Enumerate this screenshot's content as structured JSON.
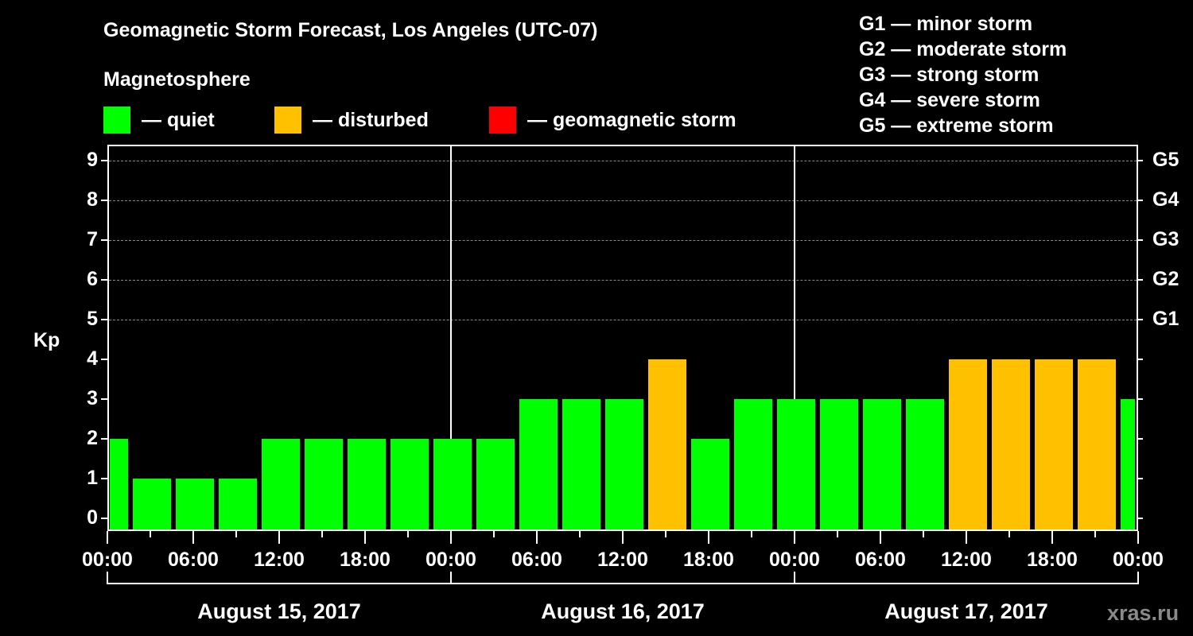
{
  "header": {
    "title": "Geomagnetic Storm Forecast, Los Angeles (UTC-07)",
    "subtitle": "Magnetosphere"
  },
  "legend": {
    "items": [
      {
        "label": "— quiet",
        "color": "#00ff00"
      },
      {
        "label": "— disturbed",
        "color": "#ffc000"
      },
      {
        "label": "— geomagnetic storm",
        "color": "#ff0000"
      }
    ]
  },
  "g_legend": [
    "G1 — minor storm",
    "G2 — moderate storm",
    "G3 — strong storm",
    "G4 — severe storm",
    "G5 — extreme storm"
  ],
  "axis": {
    "ylabel": "Kp",
    "yticks": [
      "0",
      "1",
      "2",
      "3",
      "4",
      "5",
      "6",
      "7",
      "8",
      "9"
    ],
    "gticks": [
      {
        "kp": 5,
        "label": "G1"
      },
      {
        "kp": 6,
        "label": "G2"
      },
      {
        "kp": 7,
        "label": "G3"
      },
      {
        "kp": 8,
        "label": "G4"
      },
      {
        "kp": 9,
        "label": "G5"
      }
    ],
    "xticks": [
      "00:00",
      "06:00",
      "12:00",
      "18:00",
      "00:00",
      "06:00",
      "12:00",
      "18:00",
      "00:00",
      "06:00",
      "12:00",
      "18:00",
      "00:00"
    ],
    "days": [
      "August 15, 2017",
      "August 16, 2017",
      "August 17, 2017"
    ]
  },
  "watermark": "xras.ru",
  "chart_data": {
    "type": "bar",
    "title": "Geomagnetic Storm Forecast, Los Angeles (UTC-07)",
    "subtitle": "Magnetosphere",
    "xlabel": "",
    "ylabel": "Kp",
    "ylim": [
      0,
      9
    ],
    "grid": "horizontal dashed at Kp 5-9",
    "categories": [
      "Aug 15 00:00",
      "Aug 15 03:00",
      "Aug 15 06:00",
      "Aug 15 09:00",
      "Aug 15 12:00",
      "Aug 15 15:00",
      "Aug 15 18:00",
      "Aug 15 21:00",
      "Aug 16 00:00",
      "Aug 16 03:00",
      "Aug 16 06:00",
      "Aug 16 09:00",
      "Aug 16 12:00",
      "Aug 16 15:00",
      "Aug 16 18:00",
      "Aug 16 21:00",
      "Aug 17 00:00",
      "Aug 17 03:00",
      "Aug 17 06:00",
      "Aug 17 09:00",
      "Aug 17 12:00",
      "Aug 17 15:00",
      "Aug 17 18:00",
      "Aug 17 21:00",
      "Aug 18 00:00"
    ],
    "values": [
      2,
      1,
      1,
      1,
      2,
      2,
      2,
      2,
      2,
      2,
      3,
      3,
      3,
      4,
      2,
      3,
      3,
      3,
      3,
      3,
      4,
      4,
      4,
      4,
      3
    ],
    "status": [
      "quiet",
      "quiet",
      "quiet",
      "quiet",
      "quiet",
      "quiet",
      "quiet",
      "quiet",
      "quiet",
      "quiet",
      "quiet",
      "quiet",
      "quiet",
      "disturbed",
      "quiet",
      "quiet",
      "quiet",
      "quiet",
      "quiet",
      "quiet",
      "disturbed",
      "disturbed",
      "disturbed",
      "disturbed",
      "quiet"
    ],
    "legend": [
      "quiet",
      "disturbed",
      "geomagnetic storm"
    ],
    "right_axis": {
      "5": "G1",
      "6": "G2",
      "7": "G3",
      "8": "G4",
      "9": "G5"
    }
  }
}
